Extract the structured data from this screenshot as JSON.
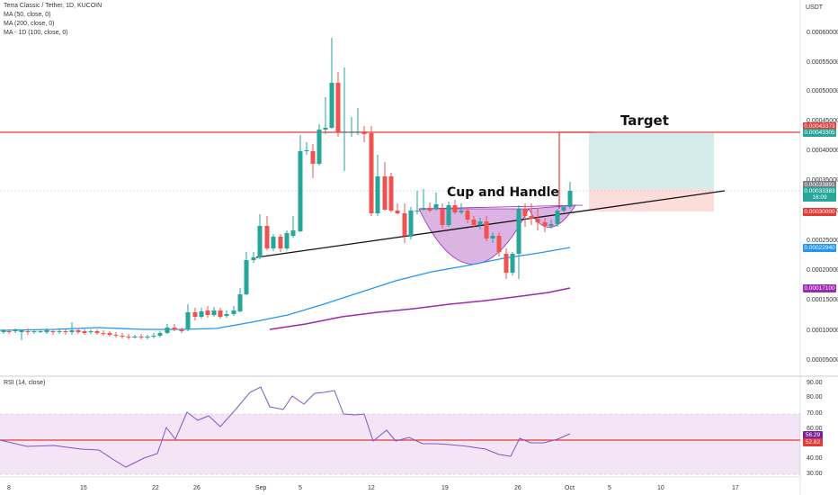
{
  "header": {
    "symbol_line": "Terra Classic / Tether, 1D, KUCOIN",
    "indicators": [
      "MA (50, close, 0)",
      "MA (200, close, 0)",
      "MA - 1D (100, close, 0)"
    ],
    "currency": "USDT"
  },
  "rsi_panel": {
    "label": "RSI (14, close)",
    "ticks": [
      "90.00",
      "80.00",
      "70.00",
      "60.00",
      "50.00",
      "40.00",
      "30.00"
    ],
    "badges": [
      {
        "text": "56.29",
        "color": "#7b1fa2"
      },
      {
        "text": "52.82",
        "color": "#e53935"
      }
    ]
  },
  "price_axis": {
    "ticks": [
      "0.00060000",
      "0.00055000",
      "0.00050000",
      "0.00045000",
      "0.00040000",
      "0.00035000",
      "0.00030000",
      "0.00025000",
      "0.00020000",
      "0.00015000",
      "0.00010000",
      "0.00005000"
    ],
    "badges": [
      {
        "text": "0.00043373",
        "color": "#e53935"
      },
      {
        "text": "0.00043305",
        "color": "#26a69a"
      },
      {
        "text": "0.00033891",
        "color": "#787b86"
      },
      {
        "text": "0.00033383",
        "color": "#26a69a"
      },
      {
        "text": "16:09",
        "color": "#26a69a"
      },
      {
        "text": "0.00030000",
        "color": "#e53935"
      },
      {
        "text": "0.00022940",
        "color": "#2196f3"
      },
      {
        "text": "0.00017100",
        "color": "#9c27b0"
      }
    ]
  },
  "time_axis": {
    "ticks": [
      "8",
      "15",
      "22",
      "26",
      "Sep",
      "5",
      "12",
      "19",
      "26",
      "Oct",
      "5",
      "10",
      "17"
    ]
  },
  "annotations": {
    "pattern": "Cup and Handle",
    "target": "Target"
  },
  "colors": {
    "up": "#26a69a",
    "down": "#ef5350",
    "ma50": "#2196f3",
    "ma200": "#9c27b0",
    "horizontal_line": "#e53935",
    "trendline": "#111111",
    "rsi": "#7e57c2"
  }
}
